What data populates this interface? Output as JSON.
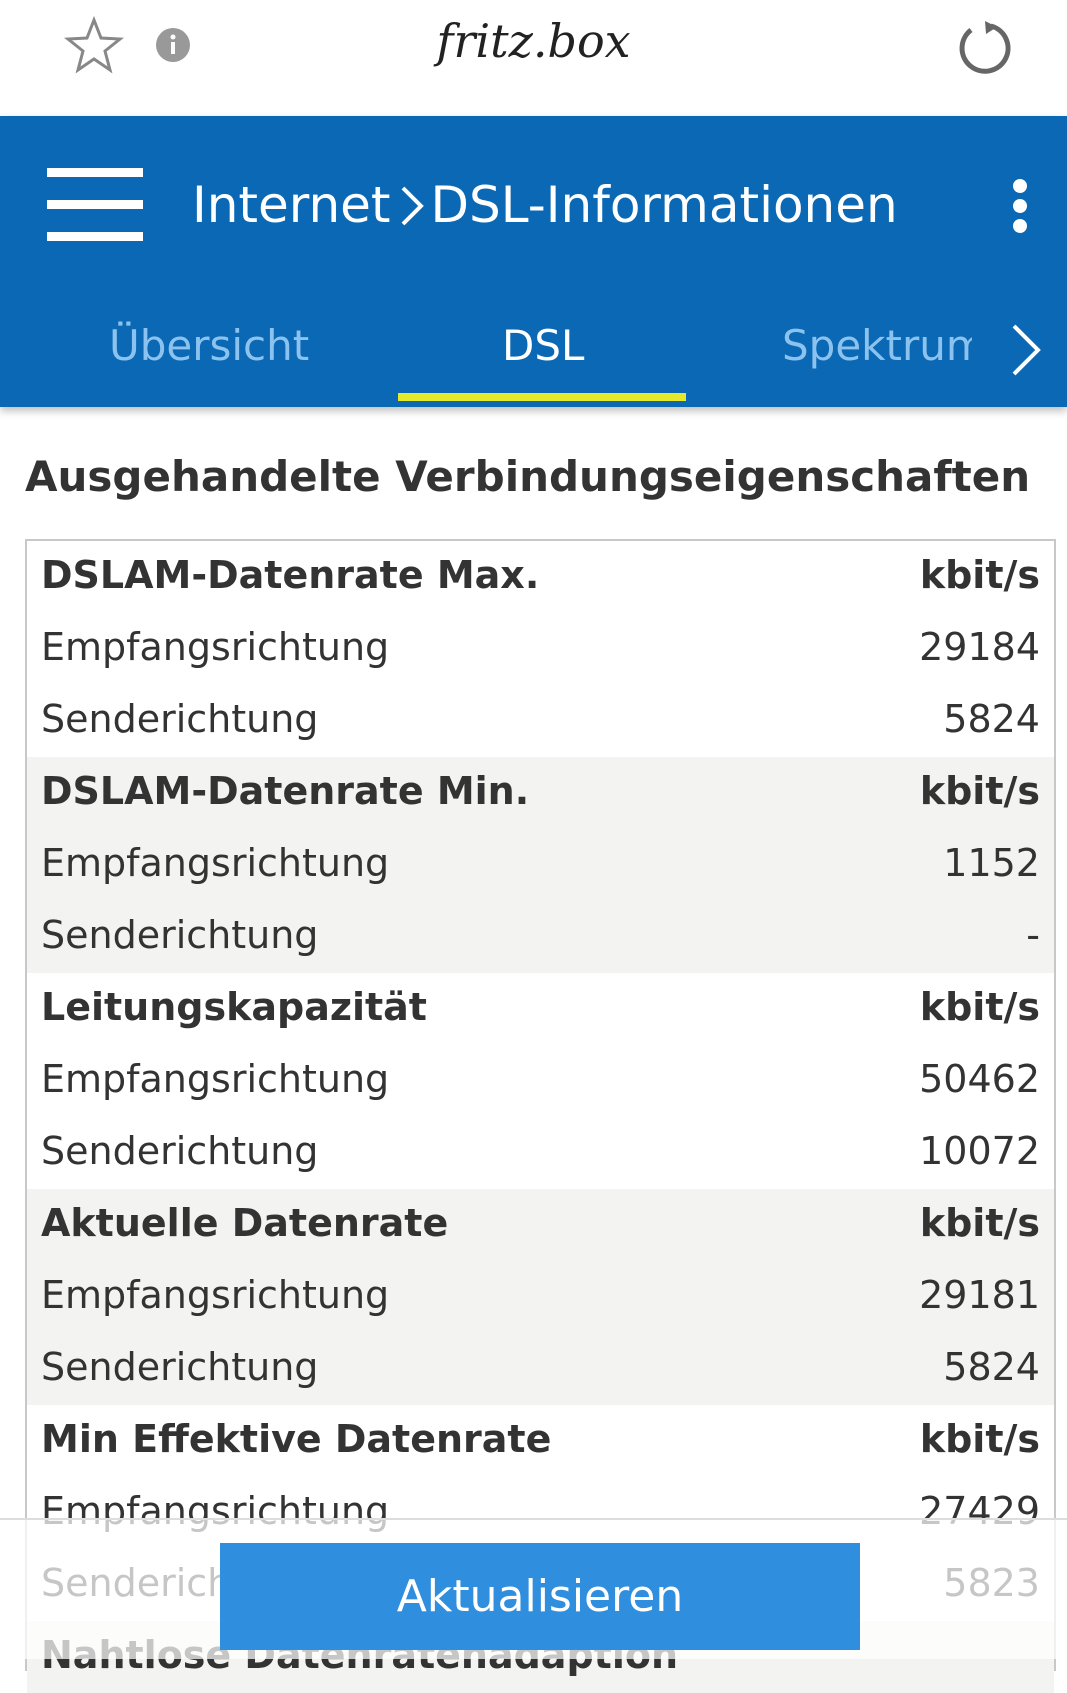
{
  "browser": {
    "url": "fritz.box"
  },
  "header": {
    "breadcrumb": [
      "Internet",
      "DSL-Informationen"
    ]
  },
  "tabs": {
    "items": [
      "Übersicht",
      "DSL",
      "Spektrum"
    ],
    "active": 1
  },
  "section_title": "Ausgehandelte Verbindungseigenschaften",
  "table": {
    "groups": [
      {
        "title": "DSLAM-Datenrate Max.",
        "unit": "kbit/s",
        "rows": [
          {
            "label": "Empfangsrichtung",
            "value": "29184"
          },
          {
            "label": "Senderichtung",
            "value": "5824"
          }
        ]
      },
      {
        "title": "DSLAM-Datenrate Min.",
        "unit": "kbit/s",
        "rows": [
          {
            "label": "Empfangsrichtung",
            "value": "1152"
          },
          {
            "label": "Senderichtung",
            "value": "-"
          }
        ]
      },
      {
        "title": "Leitungskapazität",
        "unit": "kbit/s",
        "rows": [
          {
            "label": "Empfangsrichtung",
            "value": "50462"
          },
          {
            "label": "Senderichtung",
            "value": "10072"
          }
        ]
      },
      {
        "title": "Aktuelle Datenrate",
        "unit": "kbit/s",
        "rows": [
          {
            "label": "Empfangsrichtung",
            "value": "29181"
          },
          {
            "label": "Senderichtung",
            "value": "5824"
          }
        ]
      },
      {
        "title": "Min Effektive Datenrate",
        "unit": "kbit/s",
        "rows": [
          {
            "label": "Empfangsrichtung",
            "value": "27429"
          },
          {
            "label": "Senderichtung",
            "value": "5823"
          }
        ]
      },
      {
        "title": "Nahtlose Datenratenadaption",
        "rows": []
      }
    ]
  },
  "button": "Aktualisieren"
}
